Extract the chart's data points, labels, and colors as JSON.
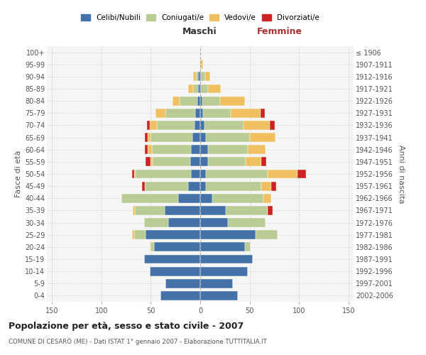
{
  "age_groups": [
    "0-4",
    "5-9",
    "10-14",
    "15-19",
    "20-24",
    "25-29",
    "30-34",
    "35-39",
    "40-44",
    "45-49",
    "50-54",
    "55-59",
    "60-64",
    "65-69",
    "70-74",
    "75-79",
    "80-84",
    "85-89",
    "90-94",
    "95-99",
    "100+"
  ],
  "birth_years": [
    "2002-2006",
    "1997-2001",
    "1992-1996",
    "1987-1991",
    "1982-1986",
    "1977-1981",
    "1972-1976",
    "1967-1971",
    "1962-1966",
    "1957-1961",
    "1952-1956",
    "1947-1951",
    "1942-1946",
    "1937-1941",
    "1932-1936",
    "1927-1931",
    "1922-1926",
    "1917-1921",
    "1912-1916",
    "1907-1911",
    "≤ 1906"
  ],
  "males_celibi": [
    40,
    35,
    51,
    57,
    47,
    55,
    32,
    36,
    22,
    12,
    9,
    10,
    9,
    8,
    6,
    5,
    3,
    2,
    2,
    0,
    0
  ],
  "males_coniugati": [
    0,
    0,
    0,
    0,
    3,
    12,
    25,
    30,
    58,
    44,
    56,
    38,
    40,
    42,
    38,
    30,
    18,
    5,
    2,
    0,
    0
  ],
  "males_vedovi": [
    0,
    0,
    0,
    0,
    1,
    2,
    0,
    2,
    0,
    0,
    2,
    2,
    4,
    3,
    7,
    10,
    7,
    5,
    3,
    1,
    0
  ],
  "males_divorziati": [
    0,
    0,
    0,
    0,
    0,
    0,
    0,
    0,
    0,
    3,
    2,
    5,
    3,
    3,
    3,
    0,
    0,
    0,
    0,
    0,
    0
  ],
  "females_nubili": [
    38,
    33,
    48,
    53,
    45,
    56,
    28,
    26,
    12,
    6,
    6,
    8,
    8,
    6,
    4,
    3,
    2,
    1,
    1,
    0,
    0
  ],
  "females_coniugate": [
    0,
    0,
    0,
    0,
    6,
    22,
    38,
    42,
    52,
    56,
    62,
    38,
    40,
    44,
    40,
    28,
    18,
    7,
    4,
    1,
    0
  ],
  "females_vedove": [
    0,
    0,
    0,
    0,
    0,
    0,
    0,
    0,
    8,
    10,
    30,
    16,
    18,
    26,
    26,
    30,
    25,
    13,
    5,
    2,
    0
  ],
  "females_divorziate": [
    0,
    0,
    0,
    0,
    0,
    0,
    0,
    5,
    0,
    5,
    9,
    5,
    0,
    0,
    5,
    4,
    0,
    0,
    0,
    0,
    0
  ],
  "color_celibi": "#4472a8",
  "color_coniugati": "#b8cc94",
  "color_vedovi": "#f0c060",
  "color_divorziati": "#cc2222",
  "title": "Popolazione per età, sesso e stato civile - 2007",
  "subtitle": "COMUNE DI CESARÒ (ME) - Dati ISTAT 1° gennaio 2007 - Elaborazione TUTTITALIA.IT",
  "label_maschi": "Maschi",
  "label_femmine": "Femmine",
  "ylabel_left": "Fasce di età",
  "ylabel_right": "Anni di nascita",
  "xlim": 155,
  "legend_labels": [
    "Celibi/Nubili",
    "Coniugati/e",
    "Vedovi/e",
    "Divorziati/e"
  ],
  "bg_color": "#ffffff",
  "plot_bg": "#f5f5f5"
}
